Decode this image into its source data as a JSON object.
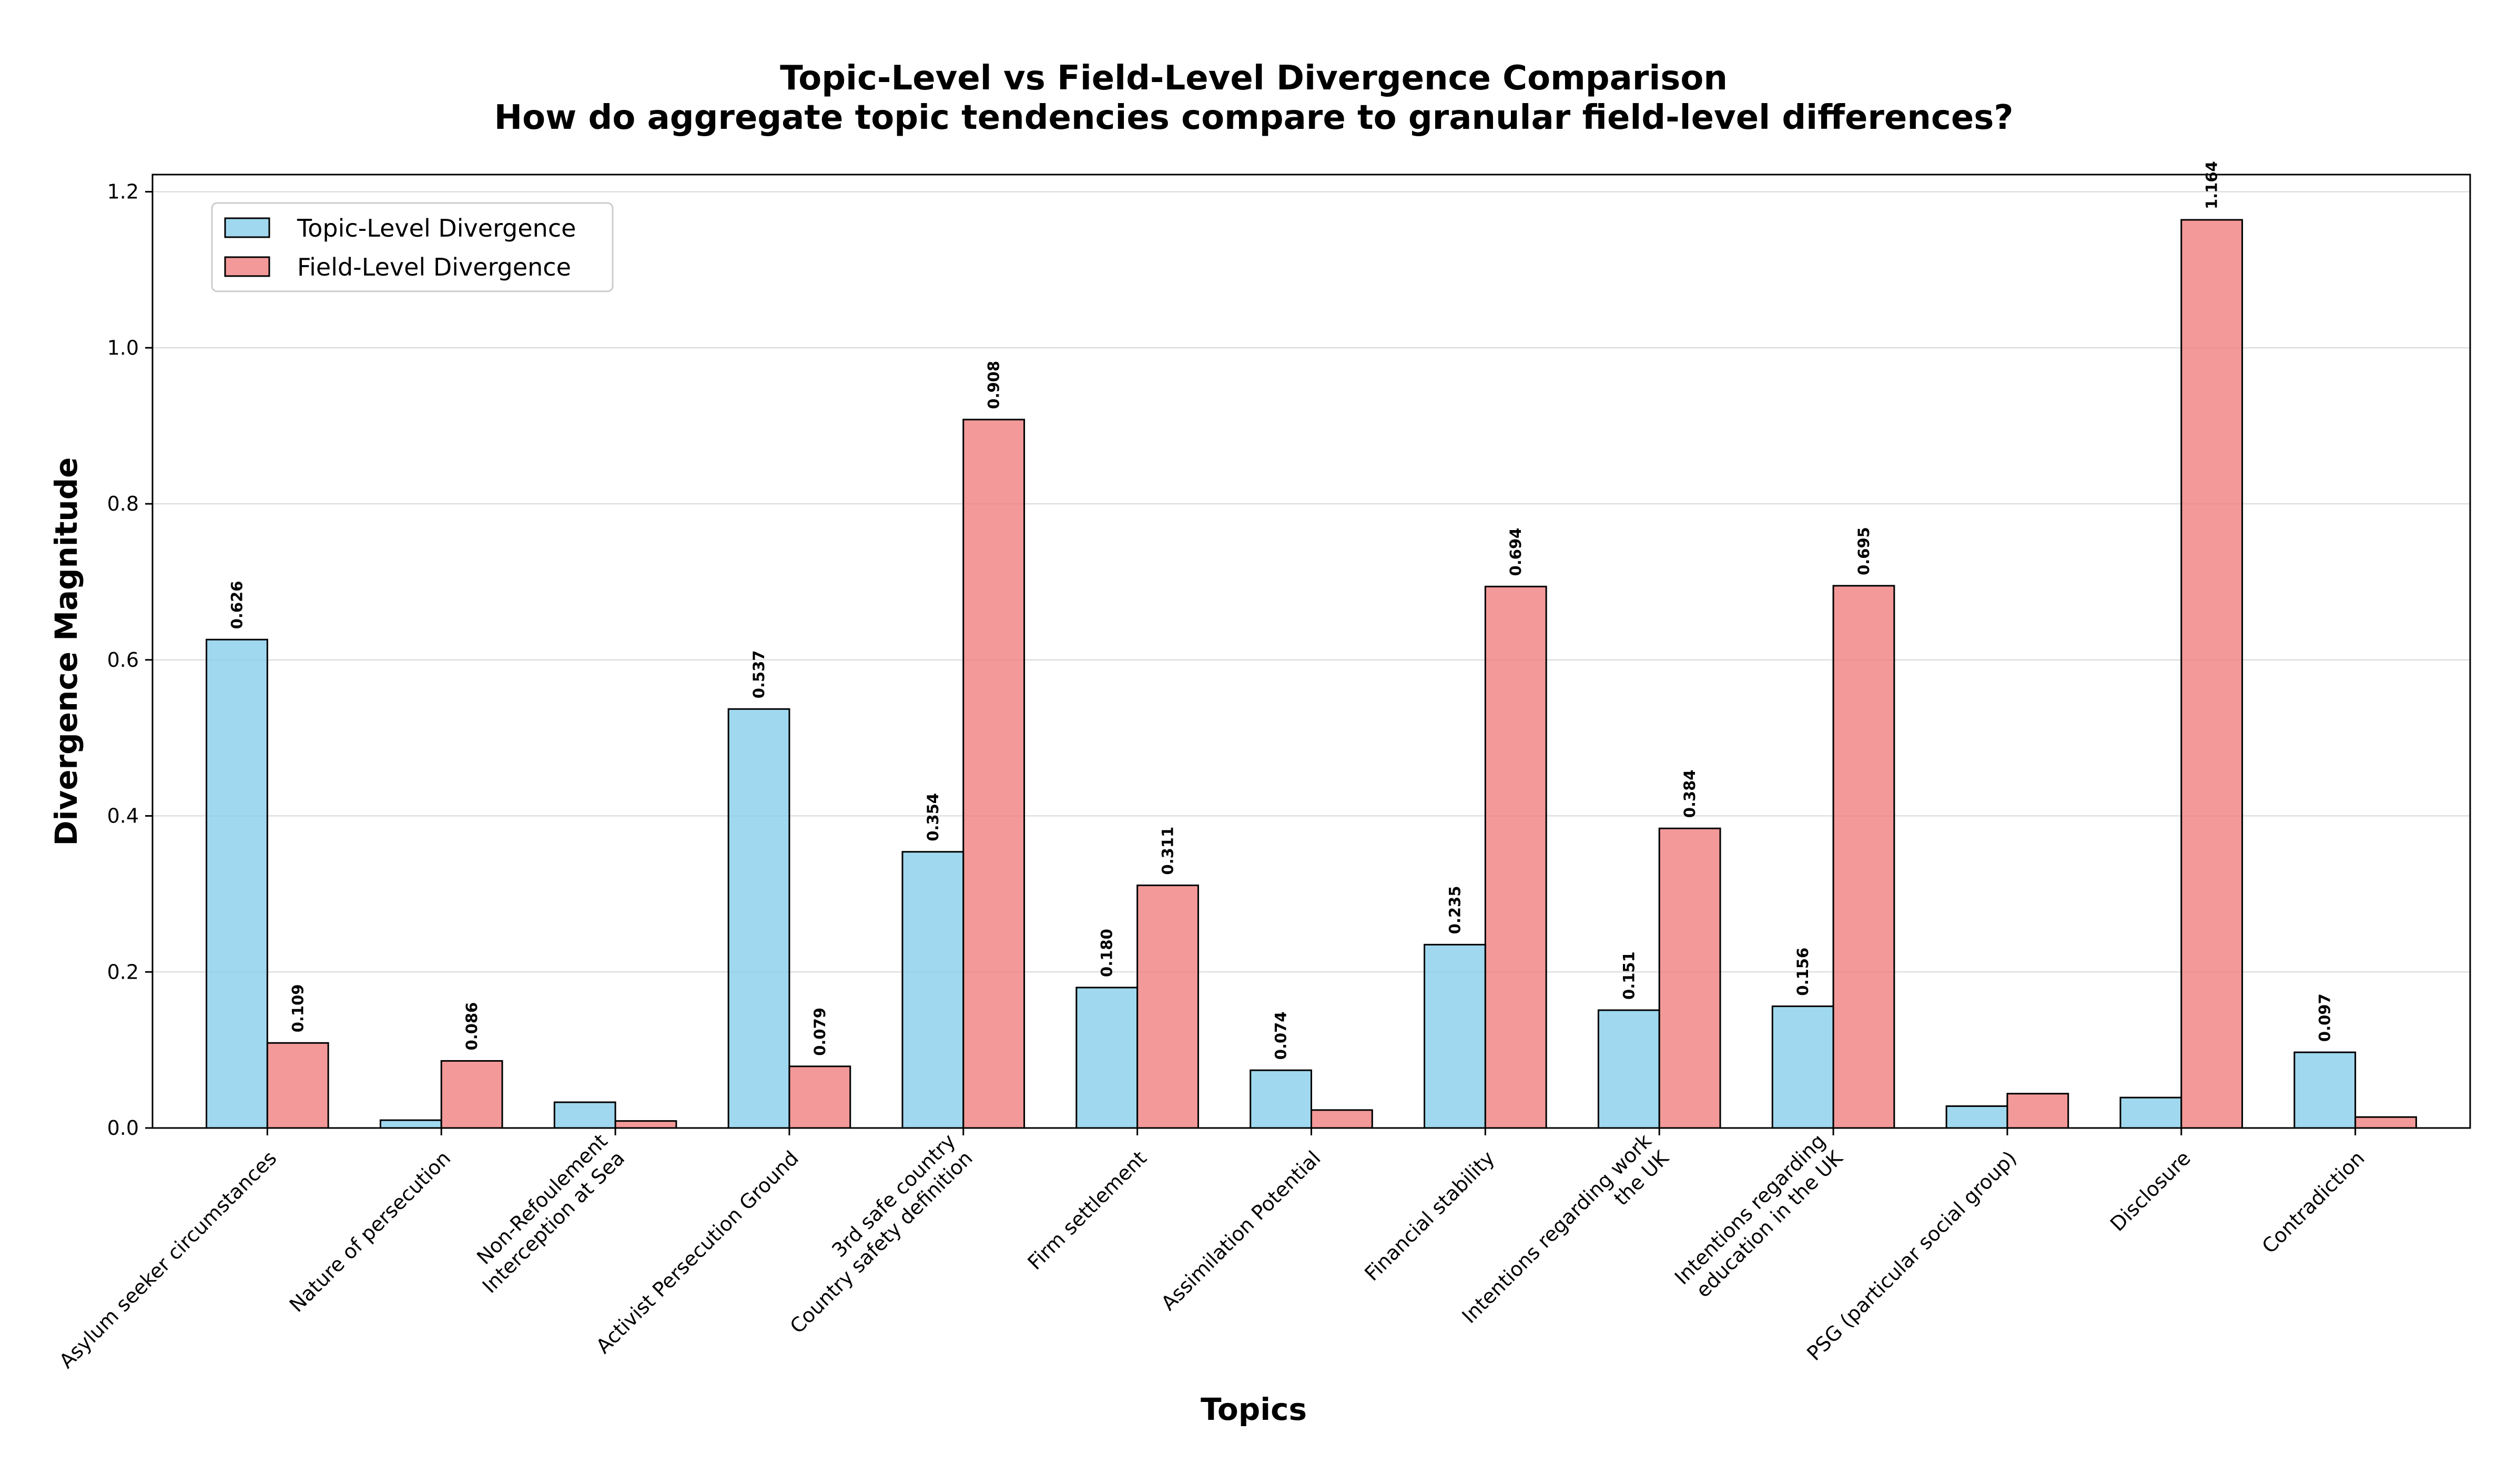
{
  "chart_data": {
    "type": "bar",
    "title": "Topic-Level vs Field-Level Divergence Comparison",
    "subtitle": "How do aggregate topic tendencies compare to granular field-level differences?",
    "xlabel": "Topics",
    "ylabel": "Divergence Magnitude",
    "ylim": [
      0,
      1.222
    ],
    "yticks": [
      "0.0",
      "0.2",
      "0.4",
      "0.6",
      "0.8",
      "1.0",
      "1.2"
    ],
    "grid": "horizontal",
    "legend_position": "top-left",
    "categories": [
      [
        "Asylum seeker circumstances"
      ],
      [
        "Nature of persecution"
      ],
      [
        "Non-Refoulement",
        "Interception at Sea"
      ],
      [
        "Activist Persecution Ground"
      ],
      [
        "3rd safe country",
        "Country safety definition"
      ],
      [
        "Firm settlement"
      ],
      [
        "Assimilation Potential"
      ],
      [
        "Financial stability"
      ],
      [
        "Intentions regarding work",
        "the UK"
      ],
      [
        "Intentions regarding",
        "education in the UK"
      ],
      [
        "PSG (particular social group)"
      ],
      [
        "Disclosure"
      ],
      [
        "Contradiction"
      ]
    ],
    "series": [
      {
        "name": "Topic-Level Divergence",
        "color": "#87ceeb",
        "values": [
          0.626,
          0.01,
          0.033,
          0.537,
          0.354,
          0.18,
          0.074,
          0.235,
          0.151,
          0.156,
          0.028,
          0.039,
          0.097
        ],
        "labels": [
          "0.626",
          "",
          "",
          "0.537",
          "0.354",
          "0.180",
          "0.074",
          "0.235",
          "0.151",
          "0.156",
          "",
          "",
          "0.097"
        ]
      },
      {
        "name": "Field-Level Divergence",
        "color": "#f08080",
        "values": [
          0.109,
          0.086,
          0.009,
          0.079,
          0.908,
          0.311,
          0.023,
          0.694,
          0.384,
          0.695,
          0.044,
          1.164,
          0.014
        ],
        "labels": [
          "0.109",
          "0.086",
          "",
          "0.079",
          "0.908",
          "0.311",
          "",
          "0.694",
          "0.384",
          "0.695",
          "",
          "1.164",
          ""
        ]
      }
    ]
  }
}
